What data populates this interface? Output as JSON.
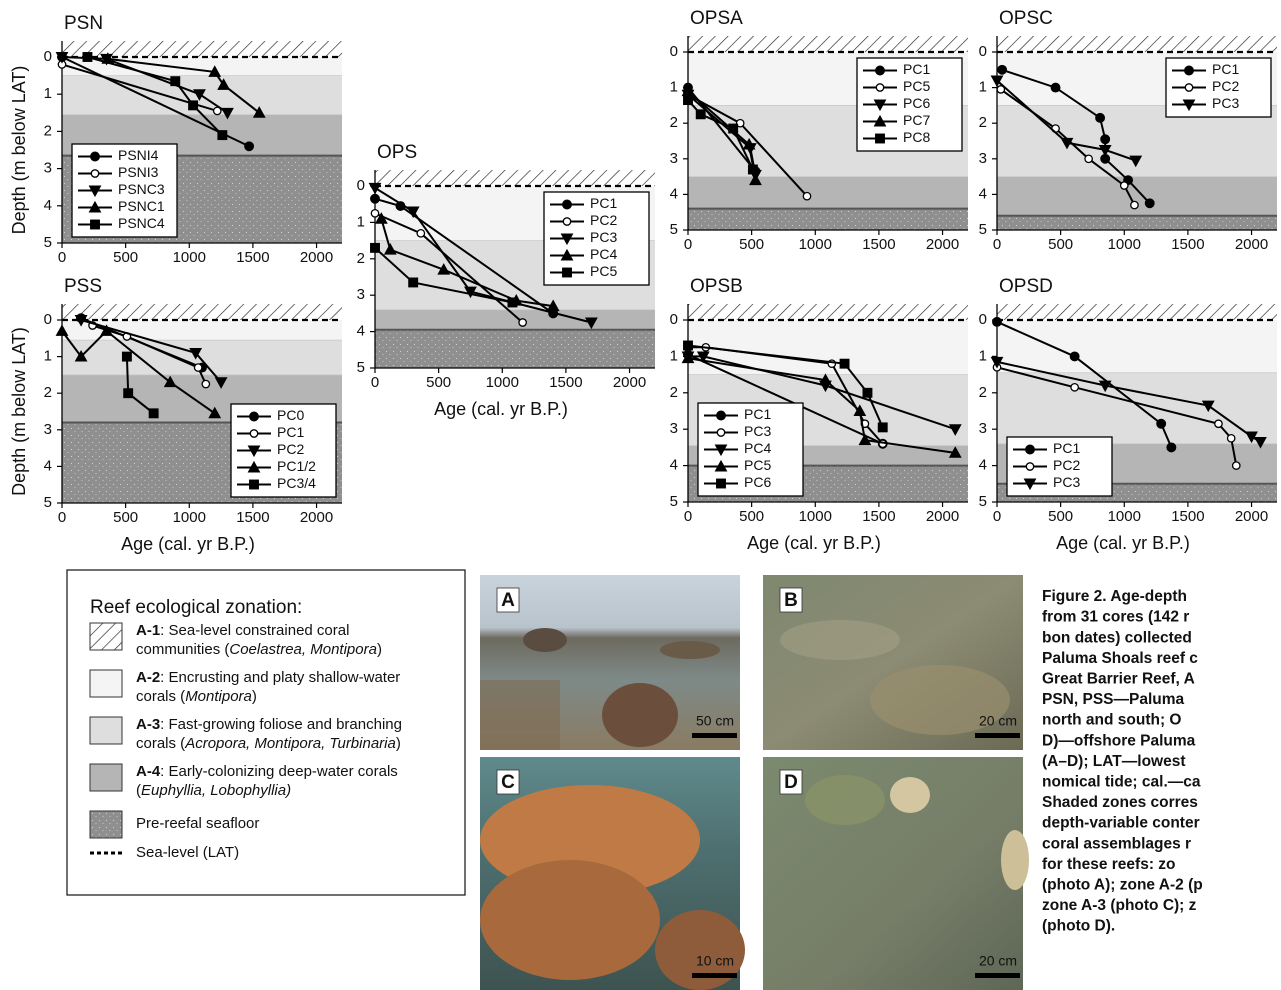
{
  "chart_data": [
    {
      "type": "line",
      "title": "PSN",
      "y_label": "Depth (m below LAT)",
      "xlim": [
        0,
        2200
      ],
      "ylim": [
        0,
        5
      ],
      "y_inverted": true,
      "xticks": [
        0,
        500,
        1000,
        1500,
        2000
      ],
      "yticks": [
        0,
        1,
        2,
        3,
        4,
        5
      ],
      "zones": [
        0.5,
        1.55,
        2.65
      ],
      "legend_position": "lower left",
      "series": [
        {
          "name": "PSNI4",
          "marker": "circle",
          "x": [
            0,
            1470
          ],
          "values": [
            0,
            2.4
          ]
        },
        {
          "name": "PSNI3",
          "marker": "open-circle",
          "x": [
            0,
            1220
          ],
          "values": [
            0.2,
            1.45
          ]
        },
        {
          "name": "PSNC3",
          "marker": "down-triangle",
          "x": [
            0,
            350,
            1080,
            1300
          ],
          "values": [
            0,
            0.05,
            1.0,
            1.5
          ]
        },
        {
          "name": "PSNC1",
          "marker": "up-triangle",
          "x": [
            360,
            1200,
            1270,
            1550
          ],
          "values": [
            0.05,
            0.4,
            0.75,
            1.5
          ]
        },
        {
          "name": "PSNC4",
          "marker": "square",
          "x": [
            200,
            890,
            1030,
            1260
          ],
          "values": [
            0,
            0.65,
            1.3,
            2.1
          ]
        }
      ]
    },
    {
      "type": "line",
      "title": "PSS",
      "y_label": "Depth (m below LAT)",
      "x_label": "Age (cal. yr B.P.)",
      "xlim": [
        0,
        2200
      ],
      "ylim": [
        0,
        5
      ],
      "y_inverted": true,
      "xticks": [
        0,
        500,
        1000,
        1500,
        2000
      ],
      "yticks": [
        0,
        1,
        2,
        3,
        4,
        5
      ],
      "zones": [
        0.55,
        1.5,
        2.8
      ],
      "legend_position": "lower right",
      "series": [
        {
          "name": "PC0",
          "marker": "circle",
          "x": [
            150,
            1100
          ],
          "values": [
            -0.05,
            1.3
          ]
        },
        {
          "name": "PC1",
          "marker": "open-circle",
          "x": [
            240,
            510,
            1070,
            1130
          ],
          "values": [
            0.15,
            0.45,
            1.3,
            1.75
          ]
        },
        {
          "name": "PC2",
          "marker": "down-triangle",
          "x": [
            150,
            1050,
            1250
          ],
          "values": [
            0,
            0.9,
            1.7
          ]
        },
        {
          "name": "PC1/2",
          "marker": "up-triangle",
          "x": [
            0,
            150,
            350,
            850,
            1200
          ],
          "values": [
            0.3,
            1.0,
            0.3,
            1.7,
            2.55
          ]
        },
        {
          "name": "PC3/4",
          "marker": "square",
          "x": [
            510,
            520,
            720
          ],
          "values": [
            1.0,
            2.0,
            2.55
          ]
        }
      ]
    },
    {
      "type": "line",
      "title": "OPS",
      "x_label": "Age (cal. yr B.P.)",
      "xlim": [
        0,
        2200
      ],
      "ylim": [
        0,
        5
      ],
      "y_inverted": true,
      "xticks": [
        0,
        500,
        1000,
        1500,
        2000
      ],
      "yticks": [
        0,
        1,
        2,
        3,
        4,
        5
      ],
      "zones": [
        1.5,
        3.4,
        3.95
      ],
      "legend_position": "upper right",
      "series": [
        {
          "name": "PC1",
          "marker": "circle",
          "x": [
            0,
            200,
            1400
          ],
          "values": [
            0.35,
            0.55,
            3.5
          ]
        },
        {
          "name": "PC2",
          "marker": "open-circle",
          "x": [
            0,
            360,
            1160
          ],
          "values": [
            0.75,
            1.3,
            3.75
          ]
        },
        {
          "name": "PC3",
          "marker": "down-triangle",
          "x": [
            0,
            300,
            750,
            1700
          ],
          "values": [
            0.05,
            0.7,
            2.9,
            3.75
          ]
        },
        {
          "name": "PC4",
          "marker": "up-triangle",
          "x": [
            50,
            120,
            540,
            1110,
            1400
          ],
          "values": [
            0.9,
            1.75,
            2.3,
            3.15,
            3.3
          ]
        },
        {
          "name": "PC5",
          "marker": "square",
          "x": [
            0,
            300,
            1080
          ],
          "values": [
            1.7,
            2.65,
            3.2
          ]
        }
      ]
    },
    {
      "type": "line",
      "title": "OPSA",
      "xlim": [
        0,
        2200
      ],
      "ylim": [
        0,
        5
      ],
      "y_inverted": true,
      "xticks": [
        0,
        500,
        1000,
        1500,
        2000
      ],
      "yticks": [
        0,
        1,
        2,
        3,
        4,
        5
      ],
      "zones": [
        1.5,
        3.5,
        4.4
      ],
      "legend_position": "upper right",
      "series": [
        {
          "name": "PC1",
          "marker": "circle",
          "x": [
            0,
            530
          ],
          "values": [
            1.0,
            3.35
          ]
        },
        {
          "name": "PC5",
          "marker": "open-circle",
          "x": [
            0,
            410,
            935
          ],
          "values": [
            1.2,
            2.0,
            4.05
          ]
        },
        {
          "name": "PC6",
          "marker": "down-triangle",
          "x": [
            0,
            490,
            530
          ],
          "values": [
            1.2,
            2.7,
            3.45
          ]
        },
        {
          "name": "PC7",
          "marker": "up-triangle",
          "x": [
            0,
            480,
            530
          ],
          "values": [
            1.1,
            2.6,
            3.6
          ]
        },
        {
          "name": "PC8",
          "marker": "square",
          "x": [
            0,
            100,
            355,
            510
          ],
          "values": [
            1.35,
            1.75,
            2.15,
            3.3
          ]
        }
      ]
    },
    {
      "type": "line",
      "title": "OPSC",
      "xlim": [
        0,
        2200
      ],
      "ylim": [
        0,
        5
      ],
      "y_inverted": true,
      "xticks": [
        0,
        500,
        1000,
        1500,
        2000
      ],
      "yticks": [
        0,
        1,
        2,
        3,
        4,
        5
      ],
      "zones": [
        1.5,
        3.5,
        4.6
      ],
      "legend_position": "upper right",
      "series": [
        {
          "name": "PC1",
          "marker": "circle",
          "x": [
            40,
            460,
            810,
            850,
            850,
            1030,
            1200
          ],
          "values": [
            0.5,
            1.0,
            1.85,
            2.45,
            3.0,
            3.6,
            4.25
          ]
        },
        {
          "name": "PC2",
          "marker": "open-circle",
          "x": [
            30,
            460,
            720,
            1000,
            1080
          ],
          "values": [
            1.05,
            2.15,
            3.0,
            3.75,
            4.3
          ]
        },
        {
          "name": "PC3",
          "marker": "down-triangle",
          "x": [
            0,
            550,
            850,
            1090
          ],
          "values": [
            0.8,
            2.55,
            2.75,
            3.05
          ]
        }
      ]
    },
    {
      "type": "line",
      "title": "OPSB",
      "x_label": "Age (cal. yr B.P.)",
      "xlim": [
        0,
        2200
      ],
      "ylim": [
        0,
        5
      ],
      "y_inverted": true,
      "xticks": [
        0,
        500,
        1000,
        1500,
        2000
      ],
      "yticks": [
        0,
        1,
        2,
        3,
        4,
        5
      ],
      "zones": [
        1.5,
        3.45,
        4.0
      ],
      "legend_position": "lower left",
      "series": [
        {
          "name": "PC1",
          "marker": "circle",
          "x": [
            0,
            1530
          ],
          "values": [
            0.95,
            3.4
          ]
        },
        {
          "name": "PC3",
          "marker": "open-circle",
          "x": [
            0,
            140,
            1130,
            1390,
            1530
          ],
          "values": [
            0.75,
            0.75,
            1.2,
            2.85,
            3.4
          ]
        },
        {
          "name": "PC4",
          "marker": "down-triangle",
          "x": [
            0,
            120,
            1080,
            2100
          ],
          "values": [
            1.0,
            1.0,
            1.8,
            3.0
          ]
        },
        {
          "name": "PC5",
          "marker": "up-triangle",
          "x": [
            0,
            1080,
            1350,
            1390,
            2100
          ],
          "values": [
            1.05,
            1.65,
            2.5,
            3.3,
            3.65
          ]
        },
        {
          "name": "PC6",
          "marker": "square",
          "x": [
            0,
            1230,
            1410,
            1530
          ],
          "values": [
            0.7,
            1.2,
            2.0,
            2.95
          ]
        }
      ]
    },
    {
      "type": "line",
      "title": "OPSD",
      "x_label": "Age (cal. yr B.P.)",
      "xlim": [
        0,
        2200
      ],
      "ylim": [
        0,
        5
      ],
      "y_inverted": true,
      "xticks": [
        0,
        500,
        1000,
        1500,
        2000
      ],
      "yticks": [
        0,
        1,
        2,
        3,
        4,
        5
      ],
      "zones": [
        1.45,
        3.4,
        4.5
      ],
      "legend_position": "lower left",
      "series": [
        {
          "name": "PC1",
          "marker": "circle",
          "x": [
            0,
            610,
            1290,
            1370
          ],
          "values": [
            0.05,
            1.0,
            2.85,
            3.5
          ]
        },
        {
          "name": "PC2",
          "marker": "open-circle",
          "x": [
            0,
            610,
            1740,
            1840,
            1880
          ],
          "values": [
            1.3,
            1.85,
            2.85,
            3.25,
            4.0
          ]
        },
        {
          "name": "PC3",
          "marker": "down-triangle",
          "x": [
            0,
            850,
            1660,
            2000,
            2070
          ],
          "values": [
            1.15,
            1.8,
            2.35,
            3.2,
            3.35
          ]
        }
      ]
    }
  ],
  "zonation": {
    "title": "Reef ecological zonation:",
    "items": [
      {
        "swatch": "hatch",
        "lines": [
          [
            [
              "A-1",
              "bold"
            ],
            [
              ": Sea-level constrained coral",
              "normal"
            ]
          ],
          [
            [
              "communities (",
              "normal"
            ],
            [
              "Coelastrea, Montipora",
              "italic"
            ],
            [
              ")",
              "normal"
            ]
          ]
        ]
      },
      {
        "swatch": "a2",
        "lines": [
          [
            [
              "A-2",
              "bold"
            ],
            [
              ": Encrusting and platy shallow-water",
              "normal"
            ]
          ],
          [
            [
              "corals (",
              "normal"
            ],
            [
              "Montipora",
              "italic"
            ],
            [
              ")",
              "normal"
            ]
          ]
        ]
      },
      {
        "swatch": "a3",
        "lines": [
          [
            [
              "A-3",
              "bold"
            ],
            [
              ": Fast-growing foliose and branching",
              "normal"
            ]
          ],
          [
            [
              "corals (",
              "normal"
            ],
            [
              "Acropora, Montipora, Turbinaria",
              "italic"
            ],
            [
              ")",
              "normal"
            ]
          ]
        ]
      },
      {
        "swatch": "a4",
        "lines": [
          [
            [
              "A-4",
              "bold"
            ],
            [
              ": Early-colonizing deep-water corals",
              "normal"
            ]
          ],
          [
            [
              "(",
              "normal"
            ],
            [
              "Euphyllia, Lobophyllia)",
              "italic"
            ]
          ]
        ]
      },
      {
        "swatch": "stipple",
        "lines": [
          [
            [
              "Pre-reefal seafloor",
              "normal"
            ]
          ]
        ]
      },
      {
        "swatch": "dash",
        "lines": [
          [
            [
              "Sea-level (LAT)",
              "normal"
            ]
          ]
        ]
      }
    ]
  },
  "photos": [
    {
      "label": "A",
      "scale": "50 cm"
    },
    {
      "label": "B",
      "scale": "20 cm"
    },
    {
      "label": "C",
      "scale": "10 cm"
    },
    {
      "label": "D",
      "scale": "20 cm"
    }
  ],
  "caption": [
    "Figure 2. Age-depth",
    "from 31 cores (142 r",
    "bon dates) collected",
    "Paluma Shoals reef c",
    "Great Barrier Reef, A",
    "PSN, PSS—Paluma",
    "north and south; O",
    "D)—offshore Paluma",
    "(A–D); LAT—lowest",
    "nomical tide; cal.—ca",
    "Shaded zones corres",
    "depth-variable conter",
    "coral assemblages r",
    "for these reefs: zo",
    "(photo A); zone A-2 (p",
    "zone A-3 (photo C); z",
    "(photo D)."
  ]
}
